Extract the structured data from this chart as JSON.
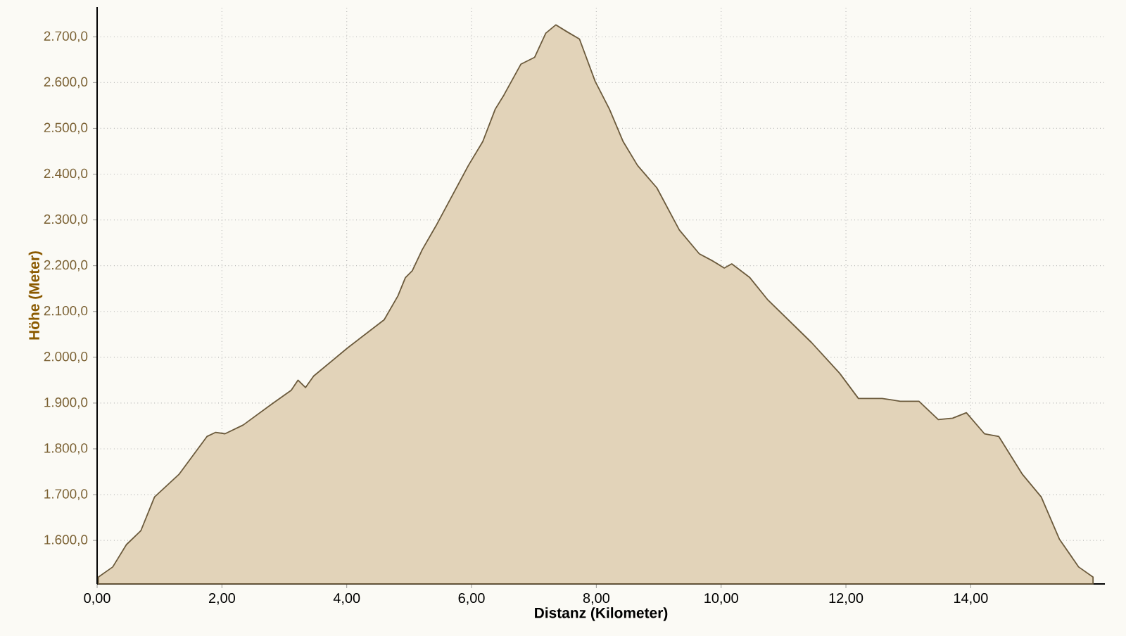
{
  "chart_data": {
    "type": "area",
    "xlabel": "Distanz (Kilometer)",
    "ylabel": "Höhe (Meter)",
    "x": [
      0.02,
      0.25,
      0.47,
      0.7,
      0.92,
      1.31,
      1.76,
      1.9,
      2.05,
      2.34,
      2.8,
      3.11,
      3.22,
      3.34,
      3.47,
      4.01,
      4.6,
      4.82,
      4.94,
      5.05,
      5.21,
      5.43,
      5.95,
      6.18,
      6.38,
      6.52,
      6.79,
      7.01,
      7.19,
      7.35,
      7.53,
      7.73,
      7.98,
      8.21,
      8.43,
      8.66,
      8.97,
      9.33,
      9.65,
      9.87,
      10.05,
      10.17,
      10.46,
      10.75,
      11.45,
      11.9,
      12.2,
      12.58,
      12.87,
      13.17,
      13.48,
      13.71,
      13.93,
      14.22,
      14.45,
      14.83,
      15.13,
      15.42,
      15.73,
      15.96
    ],
    "values": [
      1520,
      1542,
      1591,
      1621,
      1695,
      1744,
      1827,
      1836,
      1833,
      1852,
      1898,
      1928,
      1950,
      1934,
      1959,
      2020,
      2082,
      2134,
      2174,
      2189,
      2235,
      2287,
      2419,
      2471,
      2542,
      2573,
      2640,
      2655,
      2708,
      2726,
      2711,
      2695,
      2603,
      2542,
      2471,
      2419,
      2370,
      2278,
      2226,
      2210,
      2195,
      2204,
      2174,
      2125,
      2032,
      1965,
      1910,
      1910,
      1904,
      1904,
      1864,
      1867,
      1879,
      1833,
      1827,
      1744,
      1695,
      1603,
      1542,
      1520
    ],
    "color": "#e2d3b9",
    "xlim": [
      0,
      16.15
    ],
    "ylim": [
      1505,
      2765
    ],
    "xticks": [
      {
        "value": 0,
        "label": "0,00"
      },
      {
        "value": 2,
        "label": "2,00"
      },
      {
        "value": 4,
        "label": "4,00"
      },
      {
        "value": 6,
        "label": "6,00"
      },
      {
        "value": 8,
        "label": "8,00"
      },
      {
        "value": 10,
        "label": "10,00"
      },
      {
        "value": 12,
        "label": "12,00"
      },
      {
        "value": 14,
        "label": "14,00"
      }
    ],
    "yticks": [
      {
        "value": 1600,
        "label": "1.600,0"
      },
      {
        "value": 1700,
        "label": "1.700,0"
      },
      {
        "value": 1800,
        "label": "1.800,0"
      },
      {
        "value": 1900,
        "label": "1.900,0"
      },
      {
        "value": 2000,
        "label": "2.000,0"
      },
      {
        "value": 2100,
        "label": "2.100,0"
      },
      {
        "value": 2200,
        "label": "2.200,0"
      },
      {
        "value": 2300,
        "label": "2.300,0"
      },
      {
        "value": 2400,
        "label": "2.400,0"
      },
      {
        "value": 2500,
        "label": "2.500,0"
      },
      {
        "value": 2600,
        "label": "2.600,0"
      },
      {
        "value": 2700,
        "label": "2.700,0"
      }
    ],
    "grid": true
  }
}
